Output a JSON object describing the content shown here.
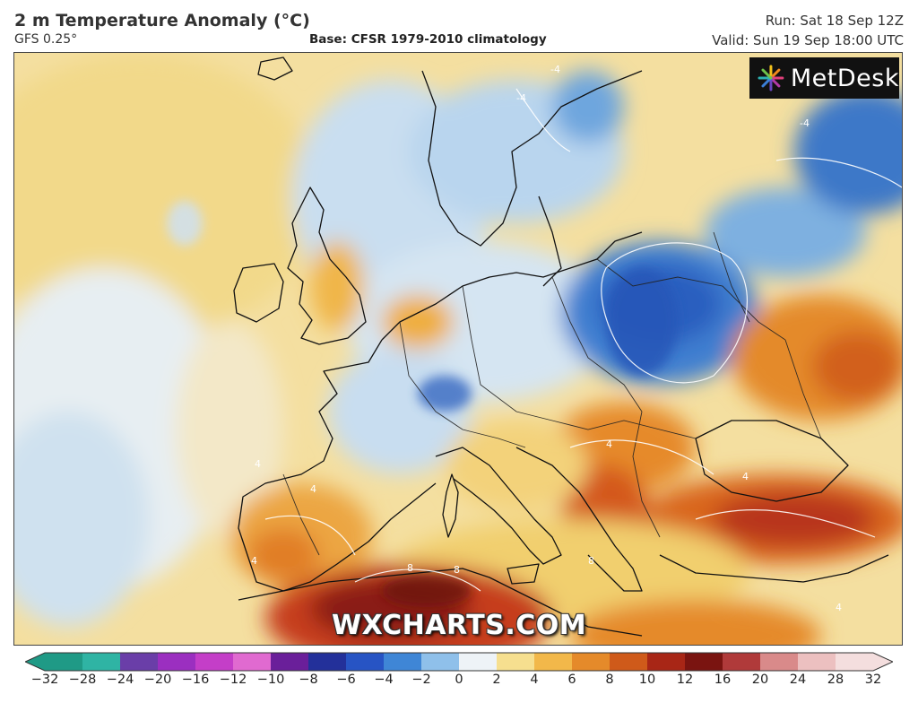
{
  "header": {
    "title": "2 m Temperature Anomaly (°C)",
    "model": "GFS 0.25°",
    "base": "Base: CFSR 1979-2010 climatology",
    "run": "Run: Sat 18 Sep 12Z",
    "valid": "Valid: Sun 19 Sep 18:00 UTC"
  },
  "brand": {
    "name": "MetDesk"
  },
  "watermark": "WXCHARTS.COM",
  "map": {
    "contour_labels": [
      "-4",
      "-4",
      "-4",
      "4",
      "4",
      "4",
      "4",
      "8",
      "8",
      "8",
      "4",
      "4"
    ]
  },
  "colorbar": {
    "tick_labels": [
      "−32",
      "−28",
      "−24",
      "−20",
      "−16",
      "−12",
      "−10",
      "−8",
      "−6",
      "−4",
      "−2",
      "0",
      "2",
      "4",
      "6",
      "8",
      "10",
      "12",
      "16",
      "20",
      "24",
      "28",
      "32"
    ],
    "colors": [
      "#1f9a86",
      "#2fb4a4",
      "#6a3ea8",
      "#9b2fc0",
      "#c43ec8",
      "#e06ad0",
      "#6a1f9a",
      "#23309a",
      "#2754c4",
      "#3f86d6",
      "#8fc0ea",
      "#eef3f7",
      "#f6df8f",
      "#f2b84a",
      "#e58a2a",
      "#cf5a1a",
      "#a82616",
      "#7a1410",
      "#b03a3a",
      "#d98a8a",
      "#ecc0c0",
      "#f4dede"
    ]
  }
}
